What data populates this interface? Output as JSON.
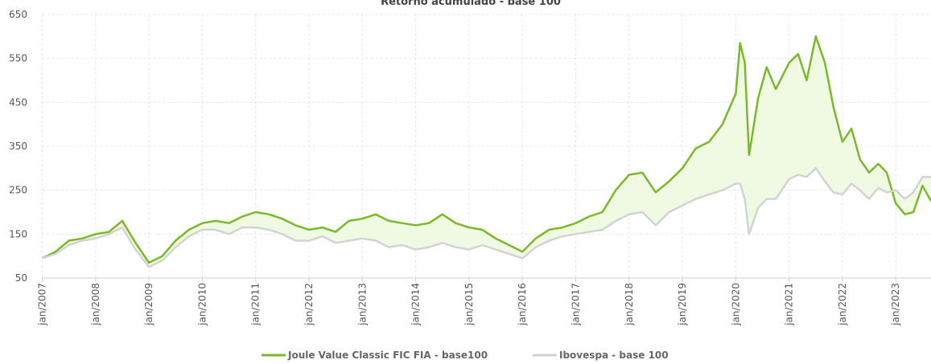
{
  "chart_data": {
    "type": "line",
    "title": "Retorno acumulado - base 100",
    "x": [
      2007.0,
      2007.25,
      2007.5,
      2007.75,
      2008.0,
      2008.25,
      2008.5,
      2008.75,
      2009.0,
      2009.25,
      2009.5,
      2009.75,
      2010.0,
      2010.25,
      2010.5,
      2010.75,
      2011.0,
      2011.25,
      2011.5,
      2011.75,
      2012.0,
      2012.25,
      2012.5,
      2012.75,
      2013.0,
      2013.25,
      2013.5,
      2013.75,
      2014.0,
      2014.25,
      2014.5,
      2014.75,
      2015.0,
      2015.25,
      2015.5,
      2015.75,
      2016.0,
      2016.25,
      2016.5,
      2016.75,
      2017.0,
      2017.25,
      2017.5,
      2017.75,
      2018.0,
      2018.25,
      2018.5,
      2018.75,
      2019.0,
      2019.25,
      2019.5,
      2019.75,
      2020.0,
      2020.08,
      2020.17,
      2020.25,
      2020.42,
      2020.58,
      2020.75,
      2021.0,
      2021.17,
      2021.33,
      2021.5,
      2021.67,
      2021.83,
      2022.0,
      2022.17,
      2022.33,
      2022.5,
      2022.67,
      2022.83,
      2023.0,
      2023.17,
      2023.33,
      2023.5,
      2023.66
    ],
    "series": [
      {
        "name": "Joule Value Classic FIC FIA - base100",
        "color": "#7ab929",
        "values": [
          95,
          110,
          135,
          140,
          150,
          155,
          180,
          130,
          85,
          100,
          135,
          160,
          175,
          180,
          175,
          190,
          200,
          195,
          185,
          170,
          160,
          165,
          155,
          180,
          185,
          195,
          180,
          175,
          170,
          175,
          195,
          175,
          165,
          160,
          140,
          125,
          110,
          140,
          160,
          165,
          175,
          190,
          200,
          250,
          285,
          290,
          245,
          270,
          300,
          345,
          360,
          400,
          470,
          585,
          540,
          330,
          460,
          530,
          480,
          540,
          560,
          500,
          600,
          540,
          440,
          360,
          390,
          320,
          290,
          310,
          290,
          220,
          195,
          200,
          260,
          225
        ]
      },
      {
        "name": "Ibovespa - base 100",
        "color": "#d3d3d3",
        "values": [
          95,
          105,
          125,
          135,
          140,
          150,
          165,
          115,
          75,
          90,
          120,
          145,
          160,
          160,
          150,
          165,
          165,
          160,
          150,
          135,
          135,
          145,
          130,
          135,
          140,
          135,
          120,
          125,
          115,
          120,
          130,
          120,
          115,
          125,
          115,
          105,
          95,
          120,
          135,
          145,
          150,
          155,
          160,
          180,
          195,
          200,
          170,
          200,
          215,
          230,
          240,
          250,
          265,
          265,
          230,
          150,
          210,
          230,
          230,
          275,
          285,
          280,
          300,
          270,
          245,
          240,
          265,
          250,
          230,
          255,
          245,
          250,
          230,
          245,
          280,
          280
        ]
      }
    ],
    "xlim": [
      2007,
      2023.66
    ],
    "xticks": [
      {
        "value": 2007,
        "label": "jan/2007"
      },
      {
        "value": 2008,
        "label": "jan/2008"
      },
      {
        "value": 2009,
        "label": "jan/2009"
      },
      {
        "value": 2010,
        "label": "jan/2010"
      },
      {
        "value": 2011,
        "label": "jan/2011"
      },
      {
        "value": 2012,
        "label": "jan/2012"
      },
      {
        "value": 2013,
        "label": "jan/2013"
      },
      {
        "value": 2014,
        "label": "jan/2014"
      },
      {
        "value": 2015,
        "label": "jan/2015"
      },
      {
        "value": 2016,
        "label": "jan/2016"
      },
      {
        "value": 2017,
        "label": "jan/2017"
      },
      {
        "value": 2018,
        "label": "jan/2018"
      },
      {
        "value": 2019,
        "label": "jan/2019"
      },
      {
        "value": 2020,
        "label": "jan/2020"
      },
      {
        "value": 2021,
        "label": "jan/2021"
      },
      {
        "value": 2022,
        "label": "jan/2022"
      },
      {
        "value": 2023,
        "label": "jan/2023"
      }
    ],
    "ylim": [
      50,
      650
    ],
    "yticks": [
      50,
      150,
      250,
      350,
      450,
      550,
      650
    ],
    "grid": true
  }
}
